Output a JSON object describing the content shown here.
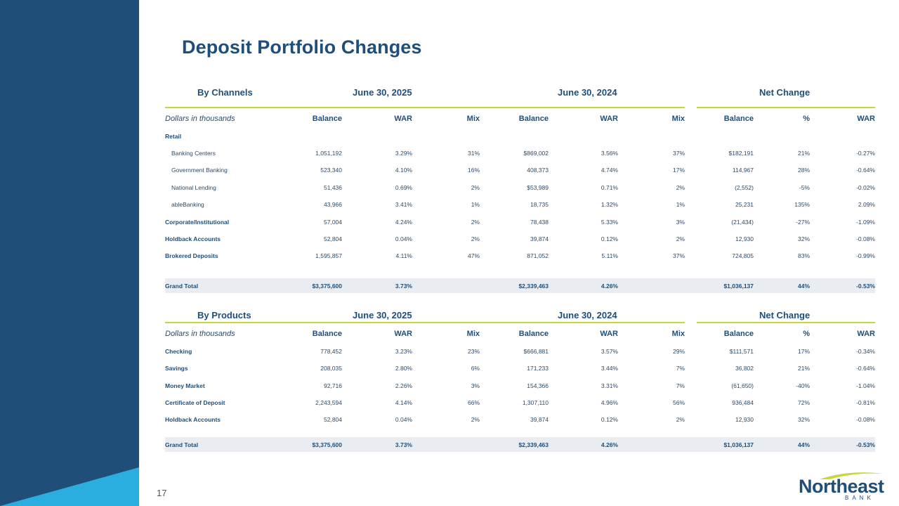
{
  "title": "Deposit Portfolio Changes",
  "page_number": "17",
  "logo": {
    "name": "Northeast",
    "sub": "BANK"
  },
  "colors": {
    "navy": "#1f4e79",
    "accent": "#c6d63b",
    "sky": "#2aaee0",
    "band": "#e9edf2"
  },
  "channels": {
    "group_headers": {
      "label": "By Channels",
      "p1": "June 30, 2025",
      "p2": "June 30, 2024",
      "net": "Net Change"
    },
    "col_headers": {
      "units": "Dollars in thousands",
      "c1": "Balance",
      "c2": "WAR",
      "c3": "Mix",
      "c4": "Balance",
      "c5": "WAR",
      "c6": "Mix",
      "c7": "Balance",
      "c8": "%",
      "c9": "WAR"
    },
    "section_label": "Retail",
    "rows": [
      {
        "label": "Banking Centers",
        "b25": "1,051,192",
        "w25": "3.29%",
        "m25": "31%",
        "b24": "$869,002",
        "w24": "3.56%",
        "m24": "37%",
        "nb": "$182,191",
        "np": "21%",
        "nw": "-0.27%"
      },
      {
        "label": "Government Banking",
        "b25": "523,340",
        "w25": "4.10%",
        "m25": "16%",
        "b24": "408,373",
        "w24": "4.74%",
        "m24": "17%",
        "nb": "114,967",
        "np": "28%",
        "nw": "-0.64%"
      },
      {
        "label": "National Lending",
        "b25": "51,436",
        "w25": "0.69%",
        "m25": "2%",
        "b24": "$53,989",
        "w24": "0.71%",
        "m24": "2%",
        "nb": "(2,552)",
        "np": "-5%",
        "nw": "-0.02%"
      },
      {
        "label": "ableBanking",
        "b25": "43,966",
        "w25": "3.41%",
        "m25": "1%",
        "b24": "18,735",
        "w24": "1.32%",
        "m24": "1%",
        "nb": "25,231",
        "np": "135%",
        "nw": "2.09%"
      },
      {
        "label": "Corporate/Institutional",
        "b25": "57,004",
        "w25": "4.24%",
        "m25": "2%",
        "b24": "78,438",
        "w24": "5.33%",
        "m24": "3%",
        "nb": "(21,434)",
        "np": "-27%",
        "nw": "-1.09%"
      },
      {
        "label": "Holdback Accounts",
        "b25": "52,804",
        "w25": "0.04%",
        "m25": "2%",
        "b24": "39,874",
        "w24": "0.12%",
        "m24": "2%",
        "nb": "12,930",
        "np": "32%",
        "nw": "-0.08%"
      },
      {
        "label": "Brokered Deposits",
        "b25": "1,595,857",
        "w25": "4.11%",
        "m25": "47%",
        "b24": "871,052",
        "w24": "5.11%",
        "m24": "37%",
        "nb": "724,805",
        "np": "83%",
        "nw": "-0.99%"
      }
    ],
    "total": {
      "label": "Grand Total",
      "b25": "$3,375,600",
      "w25": "3.73%",
      "m25": "",
      "b24": "$2,339,463",
      "w24": "4.26%",
      "m24": "",
      "nb": "$1,036,137",
      "np": "44%",
      "nw": "-0.53%"
    }
  },
  "products": {
    "group_headers": {
      "label": "By Products",
      "p1": "June 30, 2025",
      "p2": "June 30, 2024",
      "net": "Net Change"
    },
    "col_headers": {
      "units": "Dollars in thousands",
      "c1": "Balance",
      "c2": "WAR",
      "c3": "Mix",
      "c4": "Balance",
      "c5": "WAR",
      "c6": "Mix",
      "c7": "Balance",
      "c8": "%",
      "c9": "WAR"
    },
    "rows": [
      {
        "label": "Checking",
        "b25": "778,452",
        "w25": "3.23%",
        "m25": "23%",
        "b24": "$666,881",
        "w24": "3.57%",
        "m24": "29%",
        "nb": "$111,571",
        "np": "17%",
        "nw": "-0.34%"
      },
      {
        "label": "Savings",
        "b25": "208,035",
        "w25": "2.80%",
        "m25": "6%",
        "b24": "171,233",
        "w24": "3.44%",
        "m24": "7%",
        "nb": "36,802",
        "np": "21%",
        "nw": "-0.64%"
      },
      {
        "label": "Money Market",
        "b25": "92,716",
        "w25": "2.26%",
        "m25": "3%",
        "b24": "154,366",
        "w24": "3.31%",
        "m24": "7%",
        "nb": "(61,650)",
        "np": "-40%",
        "nw": "-1.04%"
      },
      {
        "label": "Certificate of Deposit",
        "b25": "2,243,594",
        "w25": "4.14%",
        "m25": "66%",
        "b24": "1,307,110",
        "w24": "4.96%",
        "m24": "56%",
        "nb": "936,484",
        "np": "72%",
        "nw": "-0.81%"
      },
      {
        "label": "Holdback Accounts",
        "b25": "52,804",
        "w25": "0.04%",
        "m25": "2%",
        "b24": "39,874",
        "w24": "0.12%",
        "m24": "2%",
        "nb": "12,930",
        "np": "32%",
        "nw": "-0.08%"
      }
    ],
    "total": {
      "label": "Grand Total",
      "b25": "$3,375,600",
      "w25": "3.73%",
      "m25": "",
      "b24": "$2,339,463",
      "w24": "4.26%",
      "m24": "",
      "nb": "$1,036,137",
      "np": "44%",
      "nw": "-0.53%"
    }
  }
}
